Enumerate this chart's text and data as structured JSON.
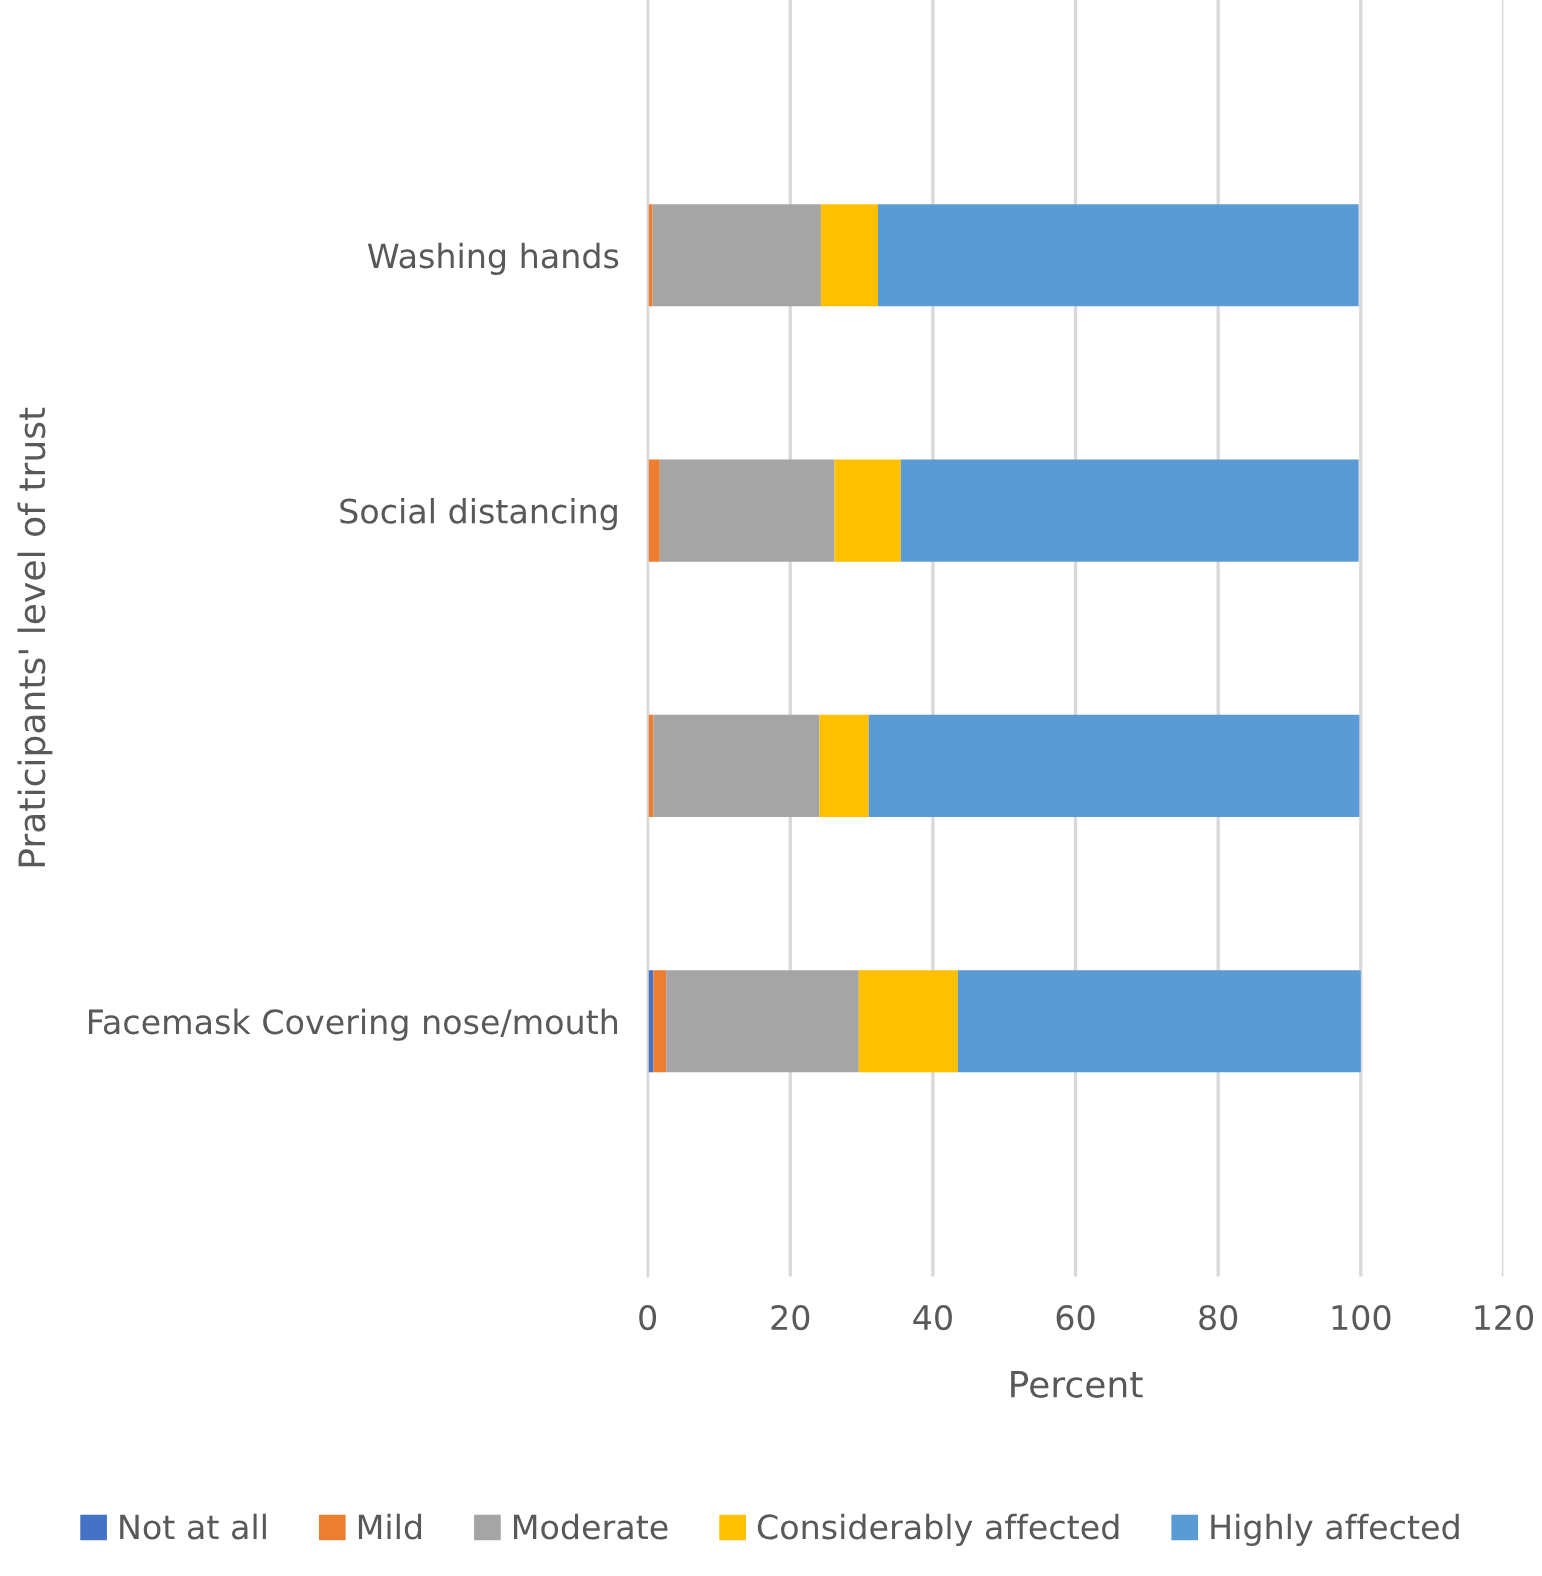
{
  "chart_data": {
    "type": "bar",
    "orientation": "horizontal",
    "stacked": true,
    "xlabel": "Percent",
    "ylabel": "Praticipants' level of trust",
    "categories": [
      "Washing hands",
      "Social distancing",
      null,
      "Facemask Covering nose/mouth"
    ],
    "series": [
      {
        "name": "Not at all",
        "color": "#4472c4",
        "values": [
          null,
          null,
          null,
          0.8
        ]
      },
      {
        "name": "Mild",
        "color": "#ed7d31",
        "values": [
          0.7,
          1.7,
          0.8,
          1.8
        ]
      },
      {
        "name": "Moderate",
        "color": "#a5a5a5",
        "values": [
          23.6,
          24.5,
          23.3,
          27.0
        ]
      },
      {
        "name": "Considerably affected",
        "color": "#ffc000",
        "values": [
          8.0,
          9.3,
          6.9,
          13.9
        ]
      },
      {
        "name": "Highly affected",
        "color": "#5b9bd5",
        "values": [
          67.4,
          64.2,
          68.8,
          56.5
        ]
      }
    ],
    "xlim": [
      0,
      120
    ],
    "xticks": [
      0,
      20,
      40,
      60,
      80,
      100,
      120
    ],
    "grid": "x",
    "legend": "bottom"
  }
}
